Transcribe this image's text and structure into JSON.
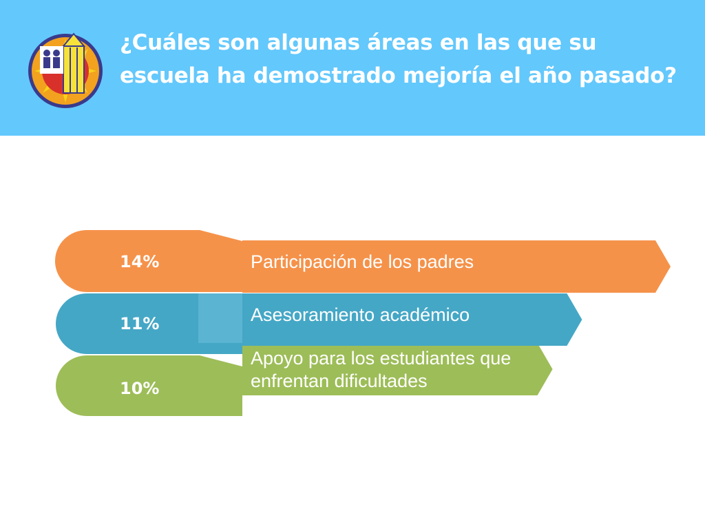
{
  "header": {
    "title": "¿Cuáles son algunas áreas en las que su escuela ha demostrado mejoría el año pasado?",
    "background_color": "#63c8fc"
  },
  "logo": {
    "icon": "school-emblem-icon"
  },
  "chart_data": {
    "type": "bar",
    "title": "",
    "categories": [
      "Participación de los padres",
      "Asesoramiento académico",
      "Apoyo para los estudiantes que enfrentan dificultades"
    ],
    "values": [
      14,
      11,
      10
    ],
    "value_labels": [
      "14%",
      "11%",
      "10%"
    ],
    "colors": [
      "#f5924a",
      "#45a7c6",
      "#9dbd58"
    ]
  },
  "labels": {
    "cat0": "Participación de los padres",
    "cat1": "Asesoramiento académico",
    "cat2_line1": "Apoyo para los estudiantes que",
    "cat2_line2": "enfrentan dificultades",
    "val0": "14%",
    "val1": "11%",
    "val2": "10%"
  }
}
